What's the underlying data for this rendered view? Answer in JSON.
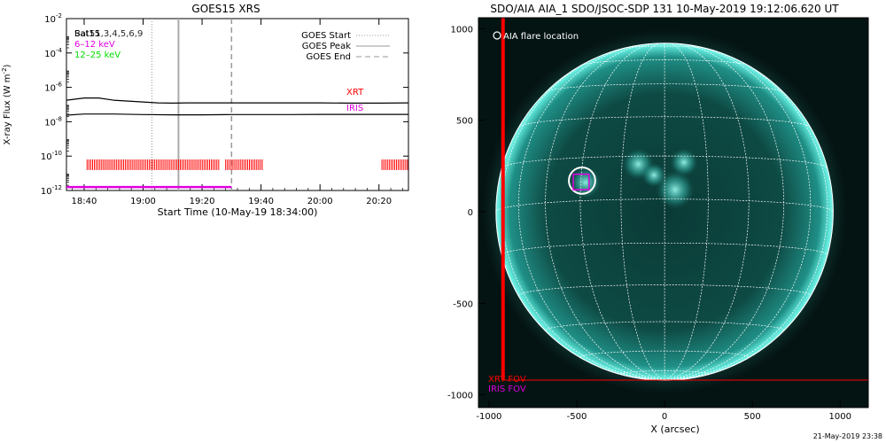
{
  "footer_timestamp": "21-May-2019 23:38",
  "chart_data": [
    {
      "type": "line",
      "title": "GOES15 XRS",
      "xlabel": "Start Time (10-May-19 18:34:00)",
      "ylabel_parts": [
        "X-ray Flux (W m",
        "-2",
        ")"
      ],
      "x_tick_labels": [
        "18:40",
        "19:00",
        "19:20",
        "19:40",
        "20:00",
        "20:20"
      ],
      "x_tick_minutes": [
        40,
        60,
        80,
        100,
        120,
        140
      ],
      "xlim_minutes": [
        34,
        150
      ],
      "yscale": "log",
      "ylim_exponent": [
        -12,
        -2
      ],
      "y_tick_exponents": [
        -12,
        -10,
        -8,
        -6,
        -4,
        -2
      ],
      "y_tick_base": "10",
      "legend_left": [
        {
          "label": "Sat15",
          "color": "#000000"
        },
        {
          "label": "Bat51,3,4,5,6,9",
          "color": "#000000"
        },
        {
          "label": "6–12 keV",
          "color": "#e000e0"
        },
        {
          "label": "12–25 keV",
          "color": "#00dd00"
        }
      ],
      "legend_right": [
        {
          "label": "GOES Start",
          "style": "dotted",
          "color": "#999999"
        },
        {
          "label": "GOES Peak",
          "style": "solid",
          "color": "#999999"
        },
        {
          "label": "GOES End",
          "style": "dashed",
          "color": "#999999"
        }
      ],
      "vlines_minutes": {
        "goes_start": 63,
        "goes_peak": 72,
        "goes_end": 90
      },
      "series": [
        {
          "color": "#000000",
          "x_minutes": [
            34,
            40,
            45,
            50,
            55,
            60,
            65,
            70,
            75,
            80,
            90,
            100,
            110,
            120,
            130,
            140,
            150
          ],
          "log_flux": [
            -6.75,
            -6.62,
            -6.62,
            -6.75,
            -6.8,
            -6.85,
            -6.9,
            -6.92,
            -6.9,
            -6.9,
            -6.9,
            -6.9,
            -6.9,
            -6.9,
            -6.92,
            -6.92,
            -6.9
          ]
        },
        {
          "color": "#000000",
          "x_minutes": [
            34,
            40,
            50,
            60,
            70,
            80,
            90,
            100,
            110,
            120,
            130,
            140,
            150
          ],
          "log_flux": [
            -7.62,
            -7.55,
            -7.55,
            -7.58,
            -7.6,
            -7.6,
            -7.58,
            -7.58,
            -7.58,
            -7.57,
            -7.57,
            -7.57,
            -7.57
          ]
        },
        {
          "color": "#e000e0",
          "x_minutes": [
            34,
            90
          ],
          "log_flux": [
            -11.8,
            -11.8
          ]
        }
      ],
      "instrument_labels": [
        {
          "label": "XRT",
          "color": "#ff0000"
        },
        {
          "label": "IRIS",
          "color": "#e000e0"
        }
      ],
      "xrt_obs_intervals_minutes": [
        [
          41,
          86
        ],
        [
          88,
          101
        ],
        [
          141,
          150
        ]
      ]
    },
    {
      "type": "image",
      "title": "SDO/AIA AIA_1 SDO/JSOC-SDP 131 10-May-2019 19:12:06.620 UT",
      "xlabel": "X (arcsec)",
      "ylabel": "",
      "x_tick_labels": [
        "-1000",
        "-500",
        "0",
        "500",
        "1000"
      ],
      "x_tick_values": [
        -1000,
        -500,
        0,
        500,
        1000
      ],
      "y_tick_labels": [
        "-1000",
        "-500",
        "0",
        "500",
        "1000"
      ],
      "y_tick_values": [
        -1000,
        -500,
        0,
        500,
        1000
      ],
      "xlim": [
        -1060,
        1160
      ],
      "ylim": [
        -1070,
        1060
      ],
      "solar_radius_arcsec": 960,
      "legend": [
        {
          "symbol": "circle",
          "label": "AIA flare location",
          "color": "#ffffff"
        }
      ],
      "fov_labels": [
        {
          "label": "XRT FOV",
          "color": "#ff0000"
        },
        {
          "label": "IRIS FOV",
          "color": "#e000e0"
        }
      ],
      "flare_location_arcsec": [
        -470,
        170
      ],
      "flare_circle_radius_arcsec": 75,
      "iris_fov_arcsec": {
        "x": [
          -520,
          -430
        ],
        "y": [
          120,
          205
        ]
      },
      "xrt_fov_left_edge_arcsec": -920,
      "xrt_fov_bottom_edge_arcsec": -920,
      "active_regions_arcsec": [
        [
          -150,
          260,
          90
        ],
        [
          110,
          270,
          80
        ],
        [
          60,
          120,
          110
        ],
        [
          -60,
          200,
          70
        ],
        [
          -450,
          160,
          90
        ]
      ]
    }
  ]
}
